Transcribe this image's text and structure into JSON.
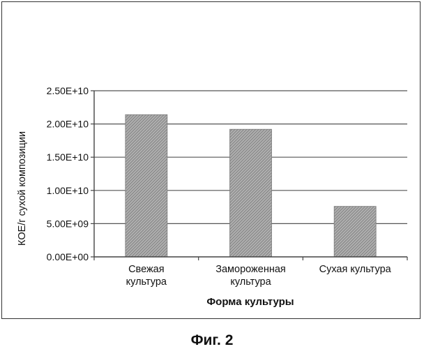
{
  "chart_data": {
    "type": "bar",
    "categories": [
      [
        "Свежая",
        "культура"
      ],
      [
        "Замороженная",
        "культура"
      ],
      [
        "Сухая культура"
      ]
    ],
    "values": [
      21400000000.0,
      19200000000.0,
      7600000000.0
    ],
    "ylabel": "КОЕ/г сухой композиции",
    "xlabel": "Форма культуры",
    "ylim": [
      0,
      25000000000.0
    ],
    "yticks": [
      {
        "value": 0,
        "label": "0.00E+00"
      },
      {
        "value": 5000000000.0,
        "label": "5.00E+09"
      },
      {
        "value": 10000000000.0,
        "label": "1.00E+10"
      },
      {
        "value": 15000000000.0,
        "label": "1.50E+10"
      },
      {
        "value": 20000000000.0,
        "label": "2.00E+10"
      },
      {
        "value": 25000000000.0,
        "label": "2.50E+10"
      }
    ],
    "grid": true,
    "bar_color": "#8c8c8c"
  },
  "figure": {
    "caption": "Фиг. 2"
  }
}
